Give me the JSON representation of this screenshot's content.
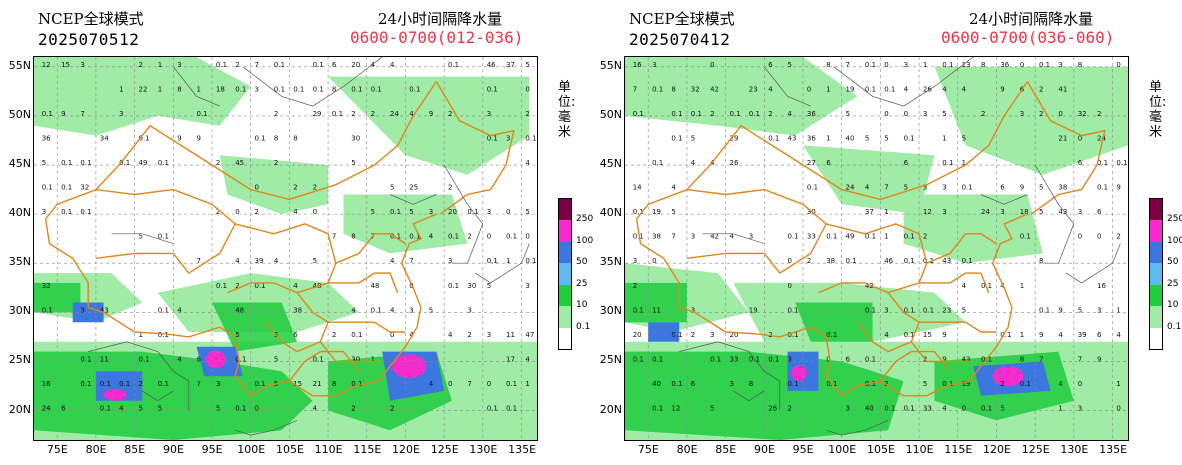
{
  "panels": [
    {
      "model": "NCEP全球模式",
      "run": "2025070512",
      "title": "24小时间隔降水量",
      "range": "0600-0700(012-036)"
    },
    {
      "model": "NCEP全球模式",
      "run": "2025070412",
      "title": "24小时间隔降水量",
      "range": "0600-0700(036-060)"
    }
  ],
  "map": {
    "lat_labels": [
      "55N",
      "50N",
      "45N",
      "40N",
      "35N",
      "30N",
      "25N",
      "20N"
    ],
    "lon_labels": [
      "75E",
      "80E",
      "85E",
      "90E",
      "95E",
      "100E",
      "105E",
      "110E",
      "115E",
      "120E",
      "125E",
      "130E",
      "135E"
    ],
    "lon_range": [
      72,
      137
    ],
    "lat_range": [
      17,
      56
    ]
  },
  "unit_label": "单位:毫米",
  "legend": {
    "labels": [
      "250",
      "100",
      "50",
      "25",
      "10",
      "0.1"
    ],
    "colors": [
      "#7a0042",
      "#f52bcd",
      "#3c77e0",
      "#5fbaf2",
      "#1fcd3d",
      "#a0eba5",
      "#ffffff"
    ]
  },
  "colors": {
    "range_text": "#e8384a",
    "border": "#e0861c",
    "grid": "#8a8a8a"
  }
}
